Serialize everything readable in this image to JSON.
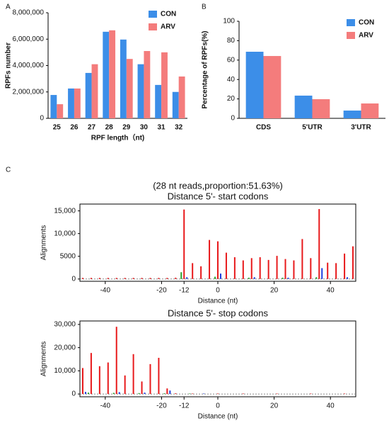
{
  "panel_labels": [
    "A",
    "B",
    "C"
  ],
  "chart_data": [
    {
      "type": "bar",
      "xlabel": "RPF length（nt)",
      "ylabel": "RPFs number",
      "categories": [
        "25",
        "26",
        "27",
        "28",
        "29",
        "30",
        "31",
        "32"
      ],
      "series": [
        {
          "name": "CON",
          "color": "#3c8ee8",
          "values": [
            1770000,
            2260000,
            3440000,
            6560000,
            5970000,
            4100000,
            2530000,
            2000000
          ]
        },
        {
          "name": "ARV",
          "color": "#f47c7c",
          "values": [
            1070000,
            2260000,
            4100000,
            6670000,
            4500000,
            5100000,
            5000000,
            3170000
          ]
        }
      ],
      "ylim": [
        0,
        8000000
      ],
      "yticks": [
        0,
        {
          "value": 2000000,
          "label": "2,000,000"
        },
        {
          "value": 4000000,
          "label": "4,000,000"
        },
        {
          "value": 6000000,
          "label": "6,000,000"
        },
        {
          "value": 8000000,
          "label": "8,000,000"
        }
      ],
      "legend": "upper right"
    },
    {
      "type": "bar",
      "ylabel": "Percentage of RPFs(%)",
      "categories": [
        "CDS",
        "5'UTR",
        "3'UTR"
      ],
      "series": [
        {
          "name": "CON",
          "color": "#3c8ee8",
          "values": [
            68.6,
            23.4,
            8
          ]
        },
        {
          "name": "ARV",
          "color": "#f47c7c",
          "values": [
            64.2,
            19.7,
            15.3
          ]
        }
      ],
      "ylim": [
        0,
        100
      ],
      "yticks": [
        0,
        20,
        40,
        60,
        80,
        100
      ],
      "legend": "upper right"
    },
    {
      "type": "bar",
      "subtitle": "(28 nt reads,proportion:51.63%)",
      "title": "Distance 5'- start codons",
      "xlabel": "Distance (nt)",
      "ylabel": "Alignments",
      "frame": true,
      "series": [
        {
          "color": "#e8191b",
          "x": [
            -48,
            -45,
            -42,
            -39,
            -36,
            -33,
            -30,
            -27,
            -24,
            -21,
            -18,
            -15,
            -12,
            -9,
            -6,
            -3,
            0,
            3,
            6,
            9,
            12,
            15,
            18,
            21,
            24,
            27,
            30,
            33,
            36,
            39,
            42,
            45,
            48
          ],
          "values": [
            250,
            250,
            250,
            250,
            250,
            250,
            250,
            250,
            250,
            250,
            250,
            300,
            15300,
            3500,
            2800,
            8600,
            8300,
            5800,
            4800,
            4100,
            4600,
            4800,
            4200,
            5100,
            4400,
            4100,
            8800,
            4600,
            15400,
            3600,
            3500,
            5600,
            7200
          ]
        },
        {
          "color": "#2ca02c",
          "x": [
            -13,
            -1,
            11,
            23,
            35
          ],
          "values": [
            1500,
            500,
            300,
            300,
            400
          ]
        },
        {
          "color": "#1f3fe0",
          "x": [
            -11,
            1,
            13,
            25,
            37,
            46
          ],
          "values": [
            400,
            1200,
            400,
            300,
            2400,
            400
          ]
        }
      ],
      "xlim": [
        -49,
        49
      ],
      "xticks": [
        -40,
        -20,
        -12,
        0,
        20,
        40
      ],
      "ylim": [
        -500,
        16500
      ],
      "yticks": [
        0,
        5000,
        {
          "value": 10000,
          "label": "10,000"
        },
        {
          "value": 15000,
          "label": "15,000"
        }
      ]
    },
    {
      "type": "bar",
      "title": "Distance 5'- stop codons",
      "xlabel": "Distance (nt)",
      "ylabel": "Alignments",
      "frame": true,
      "series": [
        {
          "color": "#e8191b",
          "x": [
            -48,
            -45,
            -42,
            -39,
            -36,
            -33,
            -30,
            -27,
            -24,
            -21,
            -18,
            -15,
            -9,
            0,
            9,
            21,
            33,
            45
          ],
          "values": [
            11200,
            17700,
            12000,
            13600,
            29000,
            8000,
            17200,
            5400,
            12900,
            15600,
            2400,
            300,
            200,
            200,
            200,
            200,
            200,
            200
          ]
        },
        {
          "color": "#2ca02c",
          "x": [
            -46,
            -37,
            -28,
            -19,
            -10
          ],
          "values": [
            600,
            500,
            400,
            300,
            200
          ]
        },
        {
          "color": "#1f3fe0",
          "x": [
            -47,
            -35,
            -26,
            -17,
            -5
          ],
          "values": [
            900,
            800,
            600,
            1500,
            200
          ]
        }
      ],
      "xlim": [
        -49,
        49
      ],
      "xticks": [
        -40,
        -20,
        -12,
        0,
        20,
        40
      ],
      "ylim": [
        -1200,
        31500
      ],
      "yticks": [
        0,
        {
          "value": 10000,
          "label": "10,000"
        },
        {
          "value": 20000,
          "label": "20,000"
        },
        {
          "value": 30000,
          "label": "30,000"
        }
      ]
    }
  ]
}
